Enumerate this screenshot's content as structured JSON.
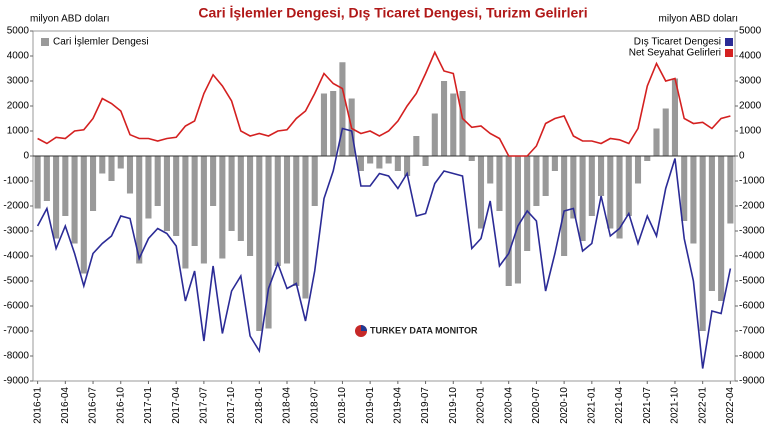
{
  "chart_data": {
    "type": "bar-line",
    "title": "Cari İşlemler Dengesi, Dış Ticaret Dengesi, Turizm Gelirleri",
    "y_label": "milyon ABD doları",
    "y2_label": "milyon ABD doları",
    "watermark": "TURKEY DATA MONITOR",
    "categories": [
      "2016-01",
      null,
      null,
      "2016-04",
      null,
      null,
      "2016-07",
      null,
      null,
      "2016-10",
      null,
      null,
      "2017-01",
      null,
      null,
      "2017-04",
      null,
      null,
      "2017-07",
      null,
      null,
      "2017-10",
      null,
      null,
      "2018-01",
      null,
      null,
      "2018-04",
      null,
      null,
      "2018-07",
      null,
      null,
      "2018-10",
      null,
      null,
      "2019-01",
      null,
      null,
      "2019-04",
      null,
      null,
      "2019-07",
      null,
      null,
      "2019-10",
      null,
      null,
      "2020-01",
      null,
      null,
      "2020-04",
      null,
      null,
      "2020-07",
      null,
      null,
      "2020-10",
      null,
      null,
      "2021-01",
      null,
      null,
      "2021-04",
      null,
      null,
      "2021-07",
      null,
      null,
      "2021-10",
      null,
      null,
      "2022-01",
      null,
      null,
      "2022-04"
    ],
    "series": [
      {
        "name": "Cari İşlemler Dengesi",
        "kind": "bar",
        "color": "#999999",
        "values": [
          -2100,
          -1800,
          -3300,
          -2400,
          -3500,
          -4700,
          -2200,
          -700,
          -1000,
          -500,
          -1500,
          -4300,
          -2500,
          -2000,
          -3000,
          -3200,
          -4500,
          -3600,
          -4300,
          -2000,
          -4100,
          -3000,
          -3400,
          -4000,
          -7000,
          -6900,
          -4400,
          -4300,
          -5200,
          -5700,
          -2000,
          2500,
          2600,
          3750,
          2300,
          -600,
          -300,
          -500,
          -300,
          -600,
          -800,
          800,
          -400,
          1700,
          3000,
          2500,
          2600,
          -200,
          -2900,
          -1100,
          -2200,
          -5200,
          -5100,
          -3800,
          -2000,
          -1600,
          -600,
          -4000,
          -2500,
          -3400,
          -2400,
          -1600,
          -2900,
          -3300,
          -2400,
          -1100,
          -200,
          1100,
          1900,
          3100,
          -2600,
          -3500,
          -7000,
          -5400,
          -5800,
          -2700
        ]
      },
      {
        "name": "Dış Ticaret Dengesi",
        "kind": "line",
        "axis": "y2",
        "color": "#2b2b96",
        "values": [
          -2800,
          -2100,
          -3700,
          -2800,
          -3900,
          -5200,
          -3900,
          -3500,
          -3200,
          -2400,
          -2500,
          -4100,
          -3300,
          -2900,
          -3100,
          -3600,
          -5800,
          -4600,
          -7400,
          -4400,
          -7100,
          -5400,
          -4800,
          -7200,
          -7800,
          -5300,
          -4300,
          -5300,
          -5100,
          -6600,
          -4600,
          -1700,
          -600,
          1100,
          1000,
          -1200,
          -1200,
          -700,
          -800,
          -1300,
          -700,
          -2400,
          -2300,
          -1100,
          -600,
          -700,
          -800,
          -3700,
          -3300,
          -1800,
          -4400,
          -3900,
          -2800,
          -2200,
          -2600,
          -5400,
          -3900,
          -2200,
          -2100,
          -3800,
          -3500,
          -1600,
          -3200,
          -2900,
          -2300,
          -3500,
          -2400,
          -3200,
          -1300,
          -100,
          -3300,
          -5000,
          -8500,
          -6200,
          -6300,
          -4500
        ]
      },
      {
        "name": "Net Seyahat Gelirleri",
        "kind": "line",
        "axis": "y2",
        "color": "#d42020",
        "values": [
          700,
          500,
          750,
          700,
          1000,
          1050,
          1500,
          2300,
          2100,
          1800,
          850,
          700,
          700,
          600,
          700,
          750,
          1200,
          1400,
          2500,
          3250,
          2800,
          2200,
          1000,
          800,
          900,
          800,
          1000,
          1050,
          1500,
          1800,
          2500,
          3300,
          2900,
          2700,
          1100,
          900,
          1000,
          800,
          1000,
          1400,
          2000,
          2500,
          3300,
          4150,
          3400,
          3300,
          1500,
          1150,
          1200,
          900,
          700,
          0,
          0,
          0,
          400,
          1300,
          1500,
          1600,
          800,
          600,
          600,
          500,
          700,
          650,
          500,
          1100,
          2800,
          3700,
          3000,
          3100,
          1500,
          1300,
          1350,
          1100,
          1500,
          1600
        ]
      }
    ],
    "ylim": [
      -9000,
      5000
    ],
    "yticks": [
      -9000,
      -8000,
      -7000,
      -6000,
      -5000,
      -4000,
      -3000,
      -2000,
      -1000,
      0,
      1000,
      2000,
      3000,
      4000,
      5000
    ],
    "y2lim": [
      -9000,
      5000
    ],
    "y2ticks": [
      -9000,
      -8000,
      -7000,
      -6000,
      -5000,
      -4000,
      -3000,
      -2000,
      -1000,
      0,
      1000,
      2000,
      3000,
      4000,
      5000
    ],
    "grid": false
  }
}
